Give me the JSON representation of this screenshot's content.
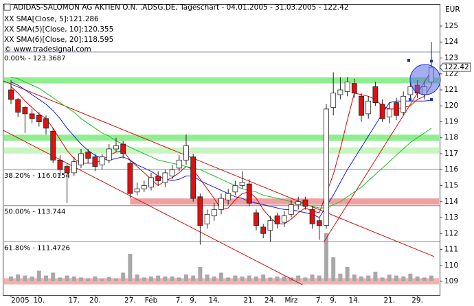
{
  "chart_data": {
    "type": "candlestick",
    "title": "ADIDAS-SALOMON AG AKTIEN O.N. .ADSG.DE, Tageschart - 04.01.2005 - 31.03.2005 - 122.42",
    "copyright": "© www.tradesignal.com",
    "currency": "EUR",
    "categories": [
      "2005",
      null,
      null,
      null,
      "10.",
      null,
      null,
      null,
      null,
      "17.",
      null,
      null,
      "20.",
      null,
      null,
      null,
      null,
      "27.",
      null,
      null,
      "Feb",
      null,
      null,
      null,
      "7.",
      null,
      "9.",
      null,
      null,
      "14.",
      null,
      null,
      null,
      null,
      "21.",
      null,
      null,
      "24.",
      null,
      null,
      "Mrz",
      null,
      null,
      null,
      "7.",
      null,
      "9.",
      null,
      null,
      "14.",
      null,
      null,
      null,
      null,
      "21.",
      null,
      null,
      null,
      "29.",
      null,
      null
    ],
    "open": [
      121.0,
      120.4,
      119.9,
      119.5,
      119.4,
      119.2,
      118.4,
      116.6,
      116.2,
      115.8,
      116.3,
      117.1,
      116.8,
      116.3,
      116.6,
      117.3,
      117.6,
      116.4,
      114.6,
      114.8,
      114.9,
      115.6,
      115.2,
      115.6,
      116.1,
      116.6,
      116.8,
      114.3,
      112.6,
      113.1,
      113.5,
      114.1,
      114.6,
      115.0,
      115.1,
      113.3,
      112.4,
      112.2,
      113.1,
      112.7,
      113.2,
      113.8,
      114.1,
      113.5,
      112.8,
      112.5,
      119.9,
      120.7,
      120.9,
      121.4,
      120.6,
      119.5,
      121.2,
      120.1,
      119.3,
      120.2,
      119.6,
      120.7,
      121.3,
      120.7,
      121.5
    ],
    "high": [
      121.6,
      120.5,
      120.0,
      119.8,
      119.6,
      119.4,
      118.6,
      116.9,
      116.4,
      116.8,
      117.3,
      117.3,
      117.0,
      117.0,
      117.6,
      118.0,
      117.8,
      116.6,
      115.2,
      115.3,
      115.8,
      115.9,
      116.0,
      116.3,
      116.9,
      118.2,
      117.0,
      114.5,
      113.5,
      113.9,
      114.5,
      114.8,
      115.3,
      115.9,
      115.4,
      113.5,
      112.6,
      113.1,
      113.3,
      113.4,
      114.1,
      114.3,
      114.3,
      113.7,
      113.0,
      120.1,
      122.1,
      121.8,
      121.8,
      121.7,
      120.8,
      120.6,
      121.5,
      120.4,
      120.2,
      120.5,
      120.9,
      121.5,
      121.6,
      121.5,
      124.0
    ],
    "low": [
      120.1,
      119.3,
      118.3,
      118.9,
      118.7,
      118.2,
      116.4,
      115.6,
      113.9,
      115.6,
      116.1,
      116.4,
      115.9,
      116.0,
      116.4,
      117.1,
      116.7,
      114.2,
      114.4,
      114.6,
      114.7,
      115.0,
      114.9,
      115.4,
      115.9,
      116.3,
      114.0,
      111.3,
      112.3,
      112.8,
      113.2,
      113.8,
      114.4,
      114.8,
      113.7,
      112.2,
      111.7,
      111.5,
      112.3,
      112.4,
      113.0,
      113.5,
      113.5,
      112.3,
      111.6,
      112.3,
      119.4,
      120.4,
      120.6,
      120.5,
      119.0,
      119.2,
      120.0,
      119.0,
      118.9,
      119.1,
      119.4,
      120.4,
      120.5,
      120.4,
      121.3
    ],
    "close": [
      120.4,
      119.6,
      119.5,
      119.2,
      119.0,
      118.6,
      116.6,
      116.0,
      115.8,
      116.5,
      117.0,
      116.7,
      116.2,
      116.8,
      117.3,
      117.5,
      117.0,
      114.5,
      114.8,
      115.0,
      115.5,
      115.3,
      115.8,
      116.0,
      116.6,
      117.5,
      114.2,
      112.5,
      113.2,
      113.5,
      114.2,
      114.5,
      115.0,
      115.2,
      113.9,
      112.5,
      112.0,
      112.8,
      112.6,
      113.1,
      113.8,
      114.0,
      113.7,
      112.6,
      112.5,
      119.8,
      120.8,
      121.0,
      121.5,
      120.8,
      119.4,
      120.3,
      120.2,
      119.2,
      119.8,
      119.4,
      120.6,
      121.2,
      120.8,
      121.2,
      122.42
    ],
    "up_color": "#ffffff",
    "down_color": "#e01010",
    "series": [
      {
        "name": "XX SMA[Close, 5]:121.286",
        "color": "#e00000",
        "values": [
          121.2,
          120.8,
          120.3,
          119.9,
          119.5,
          119.2,
          118.6,
          117.9,
          117.2,
          116.7,
          116.4,
          116.4,
          116.4,
          116.6,
          116.9,
          117.1,
          117.2,
          116.6,
          116.2,
          115.8,
          115.4,
          115.0,
          115.3,
          115.5,
          115.8,
          116.2,
          116.0,
          115.4,
          114.8,
          114.2,
          113.5,
          113.6,
          114.1,
          114.5,
          114.6,
          114.2,
          113.5,
          113.0,
          112.6,
          112.6,
          112.9,
          113.3,
          113.6,
          113.4,
          113.3,
          114.5,
          115.7,
          117.3,
          119.1,
          120.8,
          120.7,
          120.6,
          120.4,
          120.0,
          119.8,
          119.8,
          119.9,
          120.0,
          120.4,
          120.6,
          121.286
        ]
      },
      {
        "name": "XX SMA(5)[Close, 10]:120.355",
        "color": "#1020d0",
        "values": [
          121.5,
          121.3,
          121.0,
          120.7,
          120.4,
          120.1,
          119.7,
          119.2,
          118.6,
          118.1,
          117.6,
          117.2,
          116.9,
          116.7,
          116.6,
          116.7,
          116.8,
          116.6,
          116.3,
          116.1,
          115.9,
          115.6,
          115.4,
          115.3,
          115.4,
          115.6,
          115.6,
          115.3,
          115.1,
          114.9,
          114.7,
          114.5,
          114.3,
          114.2,
          114.0,
          113.9,
          113.8,
          113.7,
          113.6,
          113.5,
          113.5,
          113.4,
          113.3,
          113.2,
          113.0,
          113.7,
          114.4,
          115.2,
          116.0,
          116.7,
          117.4,
          118.1,
          118.8,
          119.5,
          120.2,
          120.3,
          120.3,
          120.3,
          120.3,
          120.3,
          120.355
        ]
      },
      {
        "name": "XX SMA(6)[Close, 20]:118.595",
        "color": "#20c020",
        "values": [
          121.8,
          121.7,
          121.5,
          121.3,
          121.1,
          120.8,
          120.5,
          120.2,
          119.9,
          119.6,
          119.2,
          118.9,
          118.6,
          118.3,
          118.1,
          117.8,
          117.6,
          117.4,
          117.2,
          117.0,
          116.8,
          116.6,
          116.5,
          116.4,
          116.3,
          116.2,
          116.1,
          116.0,
          115.8,
          115.6,
          115.4,
          115.2,
          115.0,
          114.8,
          114.7,
          114.6,
          114.4,
          114.3,
          114.2,
          114.1,
          114.0,
          113.9,
          113.8,
          113.7,
          113.6,
          113.6,
          113.8,
          114.0,
          114.3,
          114.6,
          114.9,
          115.3,
          115.7,
          116.1,
          116.5,
          116.9,
          117.3,
          117.7,
          118.0,
          118.3,
          118.595
        ]
      }
    ],
    "volume": [
      10,
      14,
      12,
      10,
      22,
      12,
      18,
      8,
      12,
      10,
      8,
      6,
      10,
      6,
      9,
      6,
      18,
      57,
      14,
      8,
      10,
      12,
      10,
      10,
      8,
      14,
      12,
      30,
      14,
      10,
      18,
      8,
      12,
      10,
      12,
      10,
      14,
      8,
      10,
      10,
      8,
      12,
      8,
      14,
      12,
      100,
      50,
      16,
      30,
      14,
      10,
      12,
      20,
      8,
      14,
      12,
      10,
      16,
      10,
      8,
      12
    ],
    "volume_color": "#a8a8a8",
    "fib_levels": [
      {
        "value": 123.3687,
        "label": "0.00% - 123.3687"
      },
      {
        "value": 116.0154,
        "label": "38.20% - 116.0154"
      },
      {
        "value": 113.744,
        "label": "50.00% - 113.744"
      },
      {
        "value": 111.4726,
        "label": "61.80% - 111.4726"
      }
    ],
    "fib_color": "#8080c0",
    "zones": [
      {
        "value": 121.6,
        "color": "#90ee90"
      },
      {
        "value": 118.0,
        "color": "#90ee90"
      },
      {
        "value": 117.2,
        "color": "#c8f5c0"
      },
      {
        "value": 114.0,
        "color": "#f0a0a0"
      },
      {
        "value": 109.0,
        "color": "#f4b0b0"
      }
    ],
    "trendlines": [
      {
        "x": [
          -1.08,
          60.4
        ],
        "values": [
          121.56,
          110.55
        ],
        "color": "#d01010"
      },
      {
        "x": [
          -1.08,
          41.6
        ],
        "values": [
          118.46,
          108.78
        ],
        "color": "#d01010"
      },
      {
        "x": [
          44.7,
          60.2
        ],
        "values": [
          111.5,
          122.33
        ],
        "color": "#d01010"
      }
    ],
    "ylim": [
      108.14,
      126.29
    ],
    "yticks": [
      109,
      110,
      111,
      112,
      113,
      114,
      115,
      116,
      117,
      118,
      119,
      120,
      121,
      122,
      123,
      124,
      125
    ]
  }
}
